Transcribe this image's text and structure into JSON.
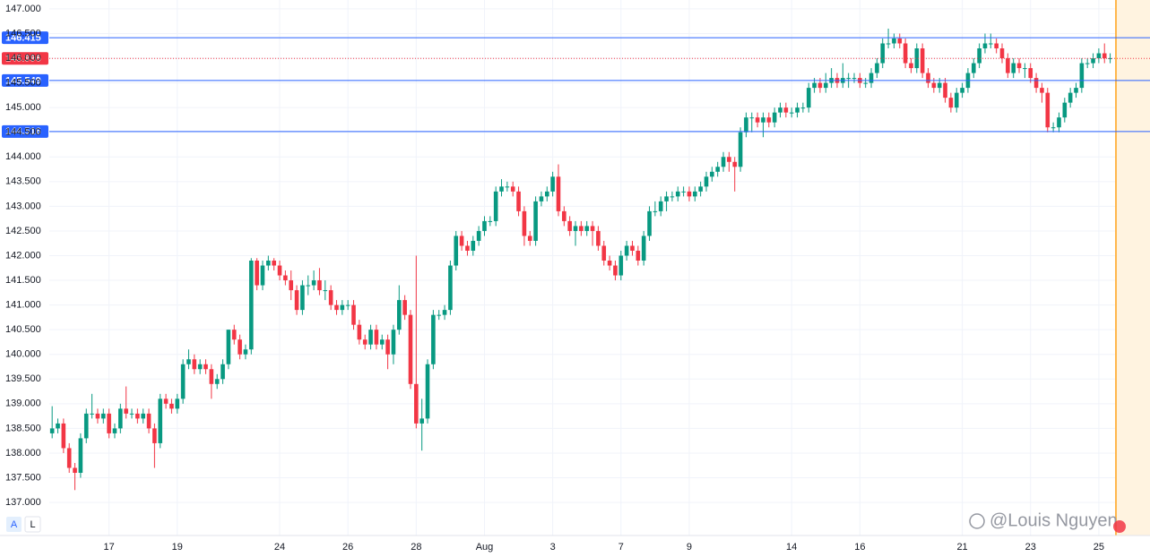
{
  "chart_data": {
    "type": "candlestick",
    "up_color": "#089981",
    "down_color": "#f23645",
    "grid": true,
    "xlim": [
      -0.5,
      193
    ],
    "ylim": [
      136.33,
      147.18
    ],
    "yticks": [
      {
        "value": 137,
        "label": "137.000"
      },
      {
        "value": 137.5,
        "label": "137.500"
      },
      {
        "value": 138,
        "label": "138.000"
      },
      {
        "value": 138.5,
        "label": "138.500"
      },
      {
        "value": 139,
        "label": "139.000"
      },
      {
        "value": 139.5,
        "label": "139.500"
      },
      {
        "value": 140,
        "label": "140.000"
      },
      {
        "value": 140.5,
        "label": "140.500"
      },
      {
        "value": 141,
        "label": "141.000"
      },
      {
        "value": 141.5,
        "label": "141.500"
      },
      {
        "value": 142,
        "label": "142.000"
      },
      {
        "value": 142.5,
        "label": "142.500"
      },
      {
        "value": 143,
        "label": "143.000"
      },
      {
        "value": 143.5,
        "label": "143.500"
      },
      {
        "value": 144,
        "label": "144.000"
      },
      {
        "value": 144.5,
        "label": "144.500"
      },
      {
        "value": 145,
        "label": "145.000"
      },
      {
        "value": 145.5,
        "label": "145.500"
      },
      {
        "value": 146,
        "label": "146.000"
      },
      {
        "value": 146.5,
        "label": "146.500"
      },
      {
        "value": 147,
        "label": "147.000"
      }
    ],
    "xticks": [
      {
        "value": 10,
        "label": "17"
      },
      {
        "value": 22,
        "label": "19"
      },
      {
        "value": 40,
        "label": "24"
      },
      {
        "value": 52,
        "label": "26"
      },
      {
        "value": 64,
        "label": "28"
      },
      {
        "value": 76,
        "label": "Aug"
      },
      {
        "value": 88,
        "label": "3"
      },
      {
        "value": 100,
        "label": "7"
      },
      {
        "value": 112,
        "label": "9"
      },
      {
        "value": 130,
        "label": "14"
      },
      {
        "value": 142,
        "label": "16"
      },
      {
        "value": 160,
        "label": "21"
      },
      {
        "value": 172,
        "label": "23"
      },
      {
        "value": 184,
        "label": "25"
      }
    ],
    "hlines": [
      {
        "value": 146.415,
        "color": "#2962ff",
        "style": "solid"
      },
      {
        "value": 145.996,
        "color": "#f23645",
        "style": "dotted"
      },
      {
        "value": 145.549,
        "color": "#2962ff",
        "style": "solid"
      },
      {
        "value": 144.516,
        "color": "#2962ff",
        "style": "solid"
      }
    ],
    "open": [
      138.4,
      138.5,
      138.6,
      138.1,
      137.7,
      137.6,
      138.3,
      138.8,
      138.8,
      138.7,
      138.8,
      138.4,
      138.5,
      138.9,
      138.8,
      138.8,
      138.7,
      138.8,
      138.5,
      138.2,
      139.1,
      139.0,
      138.9,
      139.1,
      139.8,
      139.9,
      139.7,
      139.8,
      139.7,
      139.4,
      139.5,
      139.8,
      140.5,
      140.3,
      140.0,
      140.1,
      141.9,
      141.4,
      141.8,
      141.9,
      141.8,
      141.6,
      141.5,
      141.3,
      140.9,
      141.4,
      141.4,
      141.5,
      141.3,
      141.3,
      141.0,
      140.9,
      141.0,
      141.0,
      140.6,
      140.3,
      140.2,
      140.5,
      140.2,
      140.3,
      140.0,
      140.5,
      141.1,
      140.8,
      139.4,
      138.6,
      138.7,
      139.8,
      140.8,
      140.8,
      140.9,
      141.8,
      142.4,
      142.2,
      142.1,
      142.3,
      142.5,
      142.7,
      142.7,
      143.3,
      143.4,
      143.4,
      143.3,
      142.9,
      142.4,
      142.3,
      143.1,
      143.2,
      143.3,
      143.6,
      142.9,
      142.7,
      142.5,
      142.6,
      142.5,
      142.6,
      142.5,
      142.2,
      141.9,
      141.8,
      141.6,
      142.0,
      142.2,
      142.1,
      141.9,
      142.4,
      142.9,
      142.9,
      143.1,
      143.2,
      143.2,
      143.3,
      143.3,
      143.2,
      143.3,
      143.4,
      143.6,
      143.7,
      143.8,
      144.0,
      143.9,
      143.8,
      144.5,
      144.8,
      144.8,
      144.7,
      144.8,
      144.7,
      144.9,
      145.0,
      144.9,
      144.9,
      145.0,
      145.0,
      145.4,
      145.5,
      145.4,
      145.5,
      145.6,
      145.5,
      145.6,
      145.6,
      145.6,
      145.5,
      145.5,
      145.7,
      145.9,
      146.3,
      146.3,
      146.4,
      146.3,
      145.9,
      145.8,
      146.2,
      145.7,
      145.5,
      145.4,
      145.5,
      145.2,
      145.0,
      145.3,
      145.4,
      145.7,
      145.9,
      146.2,
      146.3,
      146.3,
      146.2,
      146.0,
      145.7,
      145.9,
      145.8,
      145.8,
      145.6,
      145.4,
      145.3,
      144.6,
      144.6,
      144.8,
      145.1,
      145.3,
      145.4,
      145.9,
      145.9,
      146.0,
      146.1,
      146.0
    ],
    "high": [
      138.95,
      138.7,
      138.7,
      138.2,
      137.8,
      138.4,
      138.9,
      139.2,
      138.9,
      138.9,
      138.9,
      138.6,
      139.0,
      139.35,
      138.9,
      138.9,
      138.9,
      138.9,
      138.6,
      139.2,
      139.2,
      139.1,
      139.2,
      139.9,
      140.1,
      140.0,
      139.9,
      139.9,
      139.8,
      139.6,
      139.9,
      140.5,
      140.6,
      140.4,
      140.2,
      141.95,
      141.95,
      141.9,
      142.0,
      141.95,
      141.9,
      141.7,
      141.7,
      141.4,
      141.5,
      141.6,
      141.7,
      141.75,
      141.5,
      141.4,
      141.1,
      141.1,
      141.1,
      141.1,
      140.7,
      140.4,
      140.6,
      140.6,
      140.4,
      140.4,
      140.6,
      141.4,
      141.2,
      140.9,
      142.0,
      139.1,
      139.9,
      140.9,
      140.9,
      141.0,
      141.9,
      142.5,
      142.5,
      142.3,
      142.4,
      142.6,
      142.8,
      142.8,
      143.4,
      143.55,
      143.5,
      143.5,
      143.4,
      143.0,
      142.5,
      143.2,
      143.3,
      143.4,
      143.7,
      143.85,
      143.0,
      142.8,
      142.7,
      142.7,
      142.7,
      142.7,
      142.6,
      142.3,
      142.0,
      141.9,
      142.1,
      142.3,
      142.3,
      142.2,
      142.5,
      143.0,
      143.1,
      143.2,
      143.3,
      143.3,
      143.4,
      143.4,
      143.4,
      143.4,
      143.5,
      143.7,
      143.8,
      143.9,
      144.1,
      144.1,
      144.0,
      144.6,
      144.9,
      144.9,
      144.9,
      144.9,
      144.9,
      145.0,
      145.1,
      145.1,
      145.0,
      145.1,
      145.1,
      145.5,
      145.6,
      145.6,
      145.7,
      145.8,
      145.7,
      145.9,
      145.7,
      145.7,
      145.7,
      145.6,
      145.8,
      146.0,
      146.4,
      146.6,
      146.5,
      146.5,
      146.4,
      146.0,
      146.3,
      146.3,
      145.8,
      145.6,
      145.6,
      145.6,
      145.3,
      145.4,
      145.5,
      145.8,
      146.0,
      146.3,
      146.5,
      146.5,
      146.4,
      146.3,
      146.1,
      146.0,
      146.0,
      145.9,
      145.9,
      145.7,
      145.5,
      145.4,
      144.7,
      144.9,
      145.2,
      145.4,
      145.5,
      146.0,
      146.0,
      146.1,
      146.2,
      146.3,
      146.1
    ],
    "low": [
      138.3,
      138.4,
      138.0,
      137.6,
      137.25,
      137.5,
      138.2,
      138.7,
      138.6,
      138.6,
      138.3,
      138.3,
      138.4,
      138.7,
      138.7,
      138.6,
      138.6,
      138.4,
      137.7,
      138.1,
      138.9,
      138.8,
      138.8,
      139.0,
      139.7,
      139.6,
      139.6,
      139.6,
      139.1,
      139.3,
      139.4,
      139.7,
      140.2,
      139.9,
      139.9,
      140.0,
      141.3,
      141.3,
      141.7,
      141.7,
      141.5,
      141.4,
      141.1,
      140.8,
      140.8,
      141.2,
      141.3,
      141.2,
      141.1,
      140.9,
      140.8,
      140.8,
      140.9,
      140.5,
      140.2,
      140.1,
      140.1,
      140.1,
      140.1,
      139.7,
      139.8,
      140.4,
      140.7,
      139.3,
      138.5,
      138.05,
      138.6,
      139.7,
      140.7,
      140.7,
      140.8,
      141.7,
      142.1,
      142.0,
      142.0,
      142.2,
      142.4,
      142.6,
      142.6,
      143.2,
      143.3,
      143.2,
      142.8,
      142.2,
      142.2,
      142.2,
      143.0,
      143.1,
      143.2,
      142.8,
      142.6,
      142.4,
      142.2,
      142.4,
      142.4,
      142.2,
      142.1,
      141.8,
      141.7,
      141.5,
      141.5,
      141.9,
      142.0,
      141.8,
      141.8,
      142.3,
      142.8,
      142.8,
      142.9,
      143.1,
      143.1,
      143.2,
      143.1,
      143.1,
      143.2,
      143.3,
      143.5,
      143.6,
      143.7,
      143.7,
      143.3,
      143.7,
      144.4,
      144.5,
      144.6,
      144.4,
      144.6,
      144.6,
      144.8,
      144.8,
      144.8,
      144.8,
      144.9,
      144.9,
      145.3,
      145.3,
      145.3,
      145.4,
      145.4,
      145.4,
      145.4,
      145.5,
      145.4,
      145.4,
      145.4,
      145.6,
      145.8,
      146.2,
      146.2,
      146.2,
      145.8,
      145.7,
      145.7,
      145.6,
      145.4,
      145.3,
      145.3,
      145.1,
      144.9,
      144.9,
      145.2,
      145.3,
      145.6,
      145.8,
      146.1,
      146.2,
      146.1,
      145.9,
      145.6,
      145.6,
      145.7,
      145.6,
      145.5,
      145.3,
      145.1,
      144.5,
      144.5,
      144.5,
      144.7,
      145.0,
      145.2,
      145.3,
      145.8,
      145.8,
      145.9,
      145.9,
      145.9
    ],
    "close": [
      138.5,
      138.6,
      138.1,
      137.7,
      137.6,
      138.3,
      138.8,
      138.8,
      138.7,
      138.8,
      138.4,
      138.5,
      138.9,
      138.8,
      138.8,
      138.7,
      138.8,
      138.5,
      138.2,
      139.1,
      139.0,
      138.9,
      139.1,
      139.8,
      139.9,
      139.7,
      139.8,
      139.7,
      139.4,
      139.5,
      139.8,
      140.5,
      140.3,
      140.0,
      140.1,
      141.9,
      141.4,
      141.8,
      141.9,
      141.8,
      141.6,
      141.5,
      141.3,
      140.9,
      141.4,
      141.4,
      141.5,
      141.3,
      141.3,
      141.0,
      140.9,
      141.0,
      141.0,
      140.6,
      140.3,
      140.2,
      140.5,
      140.2,
      140.3,
      140.0,
      140.5,
      141.1,
      140.8,
      139.4,
      138.6,
      138.7,
      139.8,
      140.8,
      140.8,
      140.9,
      141.8,
      142.4,
      142.2,
      142.1,
      142.3,
      142.5,
      142.7,
      142.7,
      143.3,
      143.4,
      143.4,
      143.3,
      142.9,
      142.4,
      142.3,
      143.1,
      143.2,
      143.3,
      143.6,
      142.9,
      142.7,
      142.5,
      142.6,
      142.5,
      142.6,
      142.5,
      142.2,
      141.9,
      141.8,
      141.6,
      142.0,
      142.2,
      142.1,
      141.9,
      142.4,
      142.9,
      142.9,
      143.1,
      143.2,
      143.2,
      143.3,
      143.3,
      143.2,
      143.3,
      143.4,
      143.6,
      143.7,
      143.8,
      144.0,
      143.9,
      143.8,
      144.5,
      144.8,
      144.8,
      144.7,
      144.8,
      144.7,
      144.9,
      145.0,
      144.9,
      144.9,
      145.0,
      145.0,
      145.4,
      145.5,
      145.4,
      145.5,
      145.6,
      145.5,
      145.6,
      145.6,
      145.6,
      145.5,
      145.5,
      145.7,
      145.9,
      146.3,
      146.3,
      146.4,
      146.3,
      145.9,
      145.8,
      146.2,
      145.7,
      145.5,
      145.4,
      145.5,
      145.2,
      145.0,
      145.3,
      145.4,
      145.7,
      145.9,
      146.2,
      146.3,
      146.3,
      146.2,
      146.0,
      145.7,
      145.9,
      145.8,
      145.8,
      145.6,
      145.4,
      145.3,
      144.6,
      144.6,
      144.8,
      145.1,
      145.3,
      145.4,
      145.9,
      145.9,
      146.0,
      146.1,
      146.0,
      146.0
    ],
    "buttons": [
      "A",
      "L"
    ],
    "watermark": "@Louis Nguyen"
  }
}
